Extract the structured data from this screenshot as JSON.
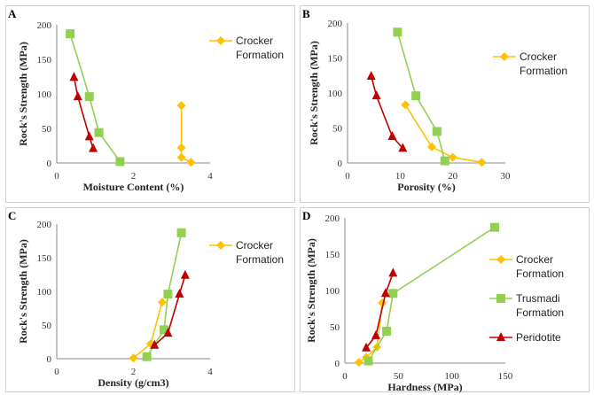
{
  "colors": {
    "crocker": "#FFC000",
    "trusmadi": "#92D050",
    "peridotite": "#C00000"
  },
  "legend_labels": {
    "crocker": [
      "Crocker",
      "Formation"
    ],
    "trusmadi": [
      "Trusmadi",
      "Formation"
    ],
    "peridotite": [
      "Peridotite"
    ]
  },
  "chart_data": [
    {
      "panel": "A",
      "type": "line",
      "xlabel": "Moisture Content (%)",
      "ylabel": "Rock's Strength (MPa)",
      "xlim": [
        0,
        4
      ],
      "ylim": [
        0,
        200
      ],
      "xticks": [
        "0",
        "2",
        "4"
      ],
      "yticks": [
        "0",
        "50",
        "100",
        "150",
        "200"
      ],
      "legend": [
        "crocker"
      ],
      "series": [
        {
          "key": "crocker",
          "marker": "diamond",
          "points": [
            [
              3.25,
              83
            ],
            [
              3.25,
              22
            ],
            [
              3.25,
              8
            ],
            [
              3.5,
              1
            ]
          ]
        },
        {
          "key": "trusmadi",
          "marker": "square",
          "points": [
            [
              0.35,
              187
            ],
            [
              0.85,
              96
            ],
            [
              1.1,
              44
            ],
            [
              1.65,
              2
            ]
          ]
        },
        {
          "key": "peridotite",
          "marker": "triangle",
          "points": [
            [
              0.45,
              124
            ],
            [
              0.55,
              96
            ],
            [
              0.85,
              38
            ],
            [
              0.95,
              21
            ]
          ]
        }
      ]
    },
    {
      "panel": "B",
      "type": "line",
      "xlabel": "Porosity (%)",
      "ylabel": "Rock's Strength (MPa)",
      "xlim": [
        0,
        30
      ],
      "ylim": [
        0,
        200
      ],
      "xticks": [
        "0",
        "10",
        "20",
        "30"
      ],
      "yticks": [
        "0",
        "50",
        "100",
        "150",
        "200"
      ],
      "legend": [
        "crocker"
      ],
      "series": [
        {
          "key": "crocker",
          "marker": "diamond",
          "points": [
            [
              11,
              83
            ],
            [
              16,
              23
            ],
            [
              20,
              8
            ],
            [
              25.5,
              1
            ]
          ]
        },
        {
          "key": "trusmadi",
          "marker": "square",
          "points": [
            [
              9.5,
              187
            ],
            [
              13,
              96
            ],
            [
              17,
              45
            ],
            [
              18.5,
              3
            ]
          ]
        },
        {
          "key": "peridotite",
          "marker": "triangle",
          "points": [
            [
              4.5,
              124
            ],
            [
              5.5,
              96
            ],
            [
              8.5,
              38
            ],
            [
              10.5,
              21
            ]
          ]
        }
      ]
    },
    {
      "panel": "C",
      "type": "line",
      "xlabel": "Density (g/cm3)",
      "ylabel": "Rock's Strength (MPa)",
      "xlim": [
        0,
        4
      ],
      "ylim": [
        0,
        200
      ],
      "xticks": [
        "0",
        "2",
        "4"
      ],
      "yticks": [
        "0",
        "50",
        "100",
        "150",
        "200"
      ],
      "legend": [
        "crocker"
      ],
      "series": [
        {
          "key": "crocker",
          "marker": "diamond",
          "points": [
            [
              2.0,
              1
            ],
            [
              2.45,
              22
            ],
            [
              2.75,
              84
            ]
          ]
        },
        {
          "key": "trusmadi",
          "marker": "square",
          "points": [
            [
              2.35,
              3
            ],
            [
              2.8,
              43
            ],
            [
              2.9,
              96
            ],
            [
              3.25,
              187
            ]
          ]
        },
        {
          "key": "peridotite",
          "marker": "triangle",
          "points": [
            [
              2.55,
              20
            ],
            [
              2.9,
              38
            ],
            [
              3.2,
              96
            ],
            [
              3.35,
              124
            ]
          ]
        }
      ]
    },
    {
      "panel": "D",
      "type": "line",
      "xlabel": "Hardness (MPa)",
      "ylabel": "Rock's Strength (MPa)",
      "xlim": [
        0,
        150
      ],
      "ylim": [
        0,
        200
      ],
      "xticks": [
        "0",
        "50",
        "100",
        "150"
      ],
      "yticks": [
        "0",
        "50",
        "100",
        "150",
        "200"
      ],
      "legend": [
        "crocker",
        "trusmadi",
        "peridotite"
      ],
      "series": [
        {
          "key": "crocker",
          "marker": "diamond",
          "points": [
            [
              13,
              1
            ],
            [
              20,
              8
            ],
            [
              30,
              22
            ],
            [
              35,
              83
            ]
          ]
        },
        {
          "key": "trusmadi",
          "marker": "square",
          "points": [
            [
              22,
              3
            ],
            [
              39,
              44
            ],
            [
              45,
              96
            ],
            [
              140,
              187
            ]
          ]
        },
        {
          "key": "peridotite",
          "marker": "triangle",
          "points": [
            [
              20,
              21
            ],
            [
              29,
              38
            ],
            [
              38,
              96
            ],
            [
              45,
              124
            ]
          ]
        }
      ]
    }
  ]
}
